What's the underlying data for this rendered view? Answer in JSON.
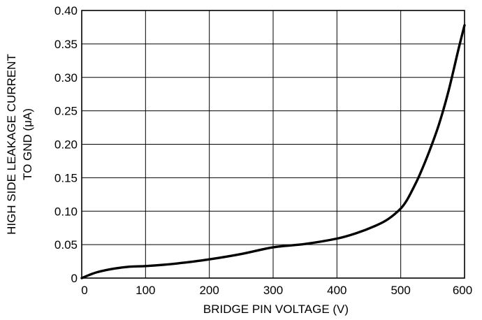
{
  "chart_data": {
    "type": "line",
    "xlabel": "BRIDGE PIN VOLTAGE (V)",
    "ylabel_line1": "HIGH SIDE LEAKAGE CURRENT",
    "ylabel_line2": "TO GND (μA)",
    "xlim": [
      0,
      600
    ],
    "ylim": [
      0,
      0.4
    ],
    "x_ticks": [
      0,
      100,
      200,
      300,
      400,
      500,
      600
    ],
    "x_tick_labels": [
      "0",
      "100",
      "200",
      "300",
      "400",
      "500",
      "600"
    ],
    "y_ticks": [
      0,
      0.05,
      0.1,
      0.15,
      0.2,
      0.25,
      0.3,
      0.35,
      0.4
    ],
    "y_tick_labels": [
      "0",
      "0.05",
      "0.10",
      "0.15",
      "0.20",
      "0.25",
      "0.30",
      "0.35",
      "0.40"
    ],
    "grid": true,
    "series": [
      {
        "x": [
          0,
          10,
          25,
          50,
          75,
          100,
          130,
          160,
          200,
          250,
          300,
          350,
          400,
          430,
          460,
          480,
          500,
          510,
          520,
          530,
          545,
          560,
          575,
          590,
          600
        ],
        "y": [
          0,
          0.004,
          0.009,
          0.014,
          0.017,
          0.018,
          0.02,
          0.023,
          0.028,
          0.036,
          0.046,
          0.051,
          0.059,
          0.067,
          0.078,
          0.088,
          0.104,
          0.117,
          0.135,
          0.155,
          0.19,
          0.23,
          0.28,
          0.34,
          0.378
        ]
      }
    ]
  }
}
